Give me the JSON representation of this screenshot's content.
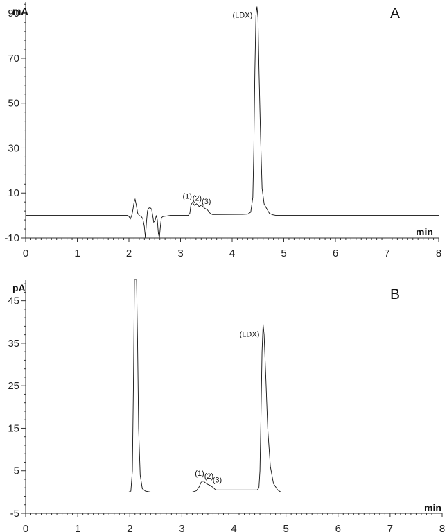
{
  "chart_data": [
    {
      "type": "line",
      "panel_label": "A",
      "ylabel": "mA",
      "xlabel": "min",
      "xlim": [
        0,
        8
      ],
      "ylim": [
        -10,
        95
      ],
      "xticks": [
        0,
        1,
        2,
        3,
        4,
        5,
        6,
        7,
        8
      ],
      "yticks": [
        -10,
        10,
        30,
        50,
        70,
        90
      ],
      "series": [
        {
          "points": [
            [
              0,
              0
            ],
            [
              1.98,
              0
            ],
            [
              2.0,
              -0.5
            ],
            [
              2.03,
              -1.5
            ],
            [
              2.06,
              0.5
            ],
            [
              2.08,
              3
            ],
            [
              2.1,
              6
            ],
            [
              2.12,
              7.2
            ],
            [
              2.14,
              5
            ],
            [
              2.17,
              1
            ],
            [
              2.2,
              0
            ],
            [
              2.24,
              -0.5
            ],
            [
              2.27,
              -1.5
            ],
            [
              2.3,
              -5
            ],
            [
              2.32,
              -10
            ],
            [
              2.34,
              -3
            ],
            [
              2.36,
              2
            ],
            [
              2.38,
              3.2
            ],
            [
              2.41,
              3.5
            ],
            [
              2.44,
              2.8
            ],
            [
              2.46,
              0
            ],
            [
              2.48,
              -3
            ],
            [
              2.51,
              -2
            ],
            [
              2.53,
              0
            ],
            [
              2.55,
              -2
            ],
            [
              2.57,
              -8
            ],
            [
              2.59,
              -10
            ],
            [
              2.61,
              -5
            ],
            [
              2.63,
              -1
            ],
            [
              2.66,
              -0.5
            ],
            [
              2.72,
              -0.3
            ],
            [
              2.8,
              0
            ],
            [
              3.15,
              0
            ],
            [
              3.18,
              1
            ],
            [
              3.2,
              4.5
            ],
            [
              3.23,
              5.8
            ],
            [
              3.27,
              4.5
            ],
            [
              3.31,
              5.2
            ],
            [
              3.36,
              4
            ],
            [
              3.41,
              4.6
            ],
            [
              3.46,
              3.3
            ],
            [
              3.52,
              2.5
            ],
            [
              3.58,
              0.8
            ],
            [
              3.62,
              0.4
            ],
            [
              4.2,
              0.5
            ],
            [
              4.3,
              0.6
            ],
            [
              4.36,
              1.5
            ],
            [
              4.4,
              8
            ],
            [
              4.42,
              30
            ],
            [
              4.44,
              65
            ],
            [
              4.46,
              89
            ],
            [
              4.48,
              93
            ],
            [
              4.5,
              88
            ],
            [
              4.52,
              65
            ],
            [
              4.55,
              35
            ],
            [
              4.58,
              12
            ],
            [
              4.62,
              5
            ],
            [
              4.67,
              3
            ],
            [
              4.72,
              1
            ],
            [
              4.78,
              0.3
            ],
            [
              4.85,
              0
            ],
            [
              8,
              0
            ]
          ]
        }
      ],
      "annotations": [
        {
          "text": "(LDX)",
          "x": 4.2,
          "y": 88
        },
        {
          "text": "(1)",
          "x": 3.13,
          "y": 7.5
        },
        {
          "text": "(2)",
          "x": 3.32,
          "y": 6.5
        },
        {
          "text": "(3)",
          "x": 3.5,
          "y": 5.2
        }
      ]
    },
    {
      "type": "line",
      "panel_label": "B",
      "ylabel": "pA",
      "xlabel": "min",
      "xlim": [
        0,
        8
      ],
      "ylim": [
        -5,
        50
      ],
      "xticks": [
        0,
        1,
        2,
        3,
        4,
        5,
        6,
        7,
        8
      ],
      "yticks": [
        -5,
        5,
        15,
        25,
        35,
        45
      ],
      "series": [
        {
          "points": [
            [
              0,
              0
            ],
            [
              1.98,
              0
            ],
            [
              2.02,
              0.2
            ],
            [
              2.05,
              5
            ],
            [
              2.07,
              25
            ],
            [
              2.09,
              50
            ],
            [
              2.13,
              50
            ],
            [
              2.15,
              35
            ],
            [
              2.17,
              15
            ],
            [
              2.2,
              4
            ],
            [
              2.24,
              0.8
            ],
            [
              2.3,
              0.2
            ],
            [
              2.4,
              0
            ],
            [
              3.2,
              0
            ],
            [
              3.28,
              0.3
            ],
            [
              3.33,
              1.2
            ],
            [
              3.37,
              2.3
            ],
            [
              3.41,
              2.6
            ],
            [
              3.46,
              2.1
            ],
            [
              3.5,
              1.8
            ],
            [
              3.54,
              1.6
            ],
            [
              3.6,
              1.1
            ],
            [
              3.65,
              0.5
            ],
            [
              4.45,
              0.5
            ],
            [
              4.48,
              1
            ],
            [
              4.5,
              5
            ],
            [
              4.52,
              18
            ],
            [
              4.54,
              33
            ],
            [
              4.56,
              39.5
            ],
            [
              4.58,
              37
            ],
            [
              4.61,
              28
            ],
            [
              4.65,
              15
            ],
            [
              4.7,
              6
            ],
            [
              4.76,
              2
            ],
            [
              4.84,
              0.5
            ],
            [
              4.9,
              0
            ],
            [
              8,
              0
            ]
          ]
        }
      ],
      "annotations": [
        {
          "text": "(LDX)",
          "x": 4.3,
          "y": 36.5
        },
        {
          "text": "(1)",
          "x": 3.34,
          "y": 3.8
        },
        {
          "text": "(2)",
          "x": 3.52,
          "y": 3.2
        },
        {
          "text": "(3)",
          "x": 3.68,
          "y": 2.3
        }
      ]
    }
  ]
}
